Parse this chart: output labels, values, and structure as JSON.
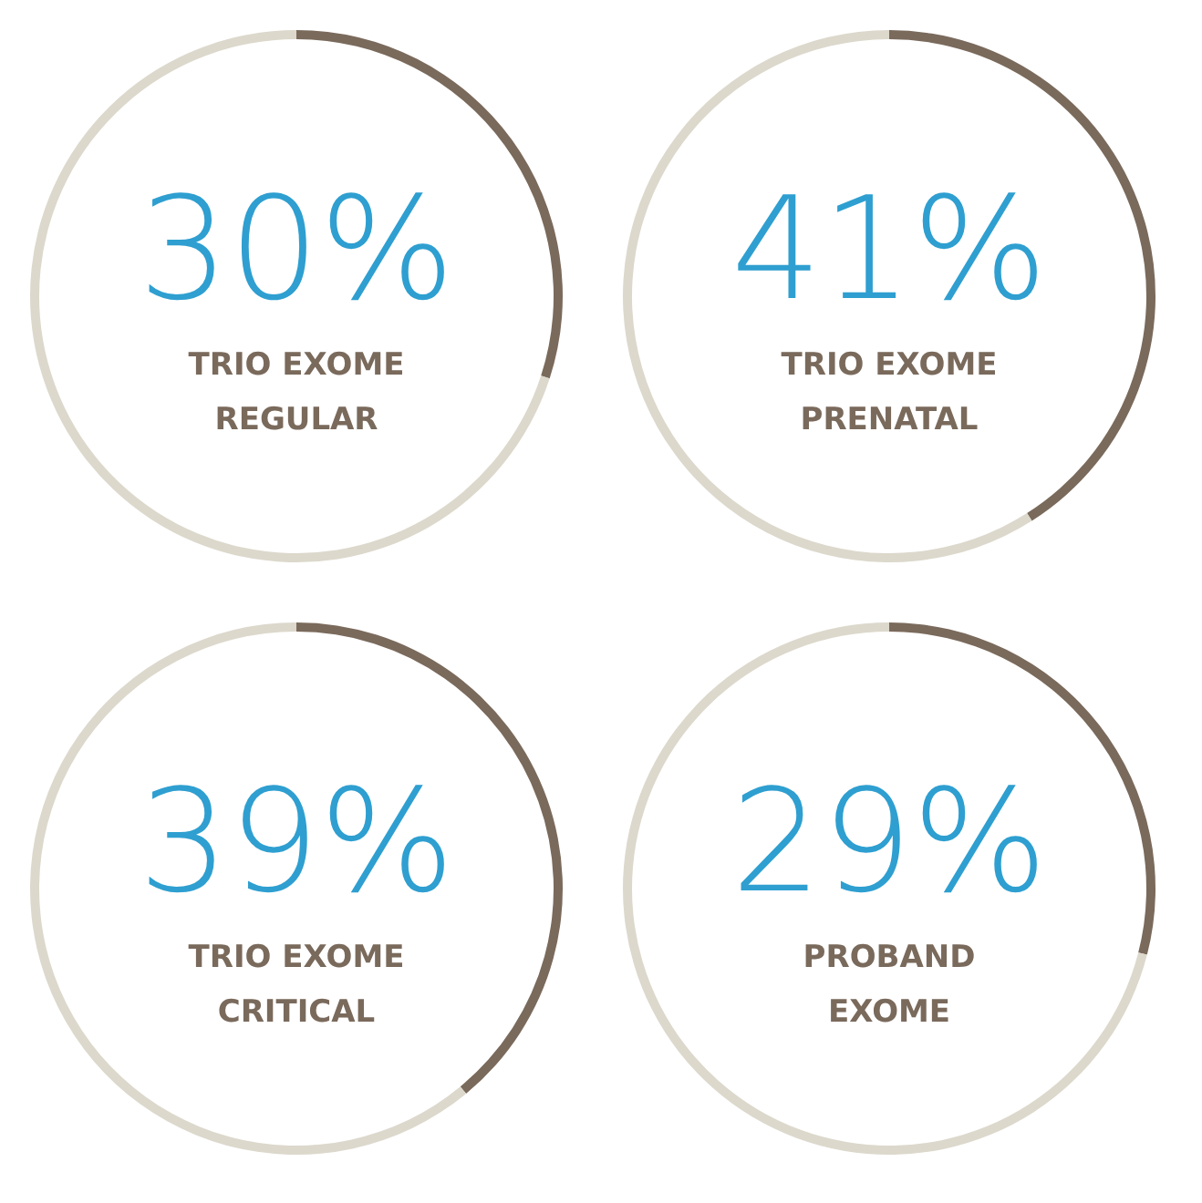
{
  "chart_data": [
    {
      "type": "donut",
      "title": "TRIO EXOME\nREGULAR",
      "categories": [
        null,
        null
      ],
      "values": [
        30,
        70
      ],
      "colors": [
        "#7a6a5c",
        "#dcd8cc"
      ],
      "value_labels": [
        "30%",
        null
      ]
    },
    {
      "type": "donut",
      "title": "TRIO EXOME\nPRENATAL",
      "categories": [
        null,
        null
      ],
      "values": [
        41,
        59
      ],
      "colors": [
        "#7a6a5c",
        "#dcd8cc"
      ],
      "value_labels": [
        "41%",
        null
      ]
    },
    {
      "type": "donut",
      "title": "TRIO EXOME\nCRITICAL",
      "categories": [
        null,
        null
      ],
      "values": [
        39,
        61
      ],
      "colors": [
        "#7a6a5c",
        "#dcd8cc"
      ],
      "value_labels": [
        "39%",
        null
      ]
    },
    {
      "type": "donut",
      "title": "PROBAND\nEXOME",
      "categories": [
        null,
        null
      ],
      "values": [
        29,
        71
      ],
      "colors": [
        "#7a6a5c",
        "#dcd8cc"
      ],
      "value_labels": [
        "29%",
        null
      ]
    }
  ]
}
